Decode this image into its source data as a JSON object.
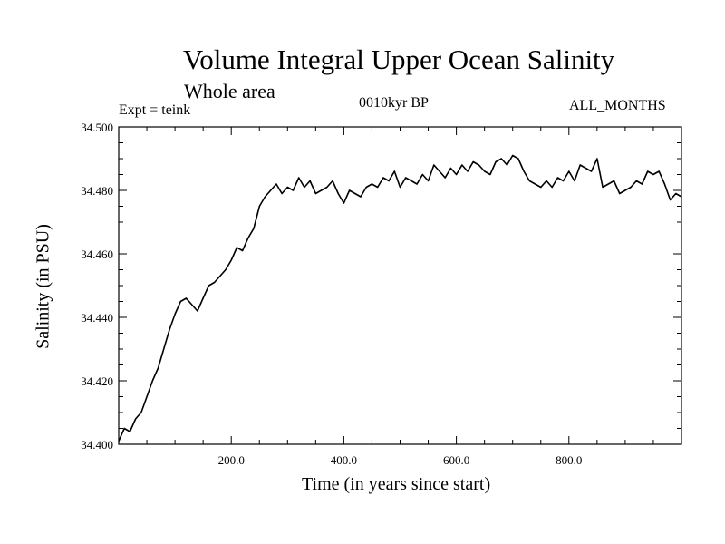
{
  "chart_data": {
    "type": "line",
    "title": "Volume Integral Upper Ocean Salinity",
    "subtitle": "Whole area",
    "annotations": {
      "expt": "Expt = teink",
      "period": "0010kyr BP",
      "months": "ALL_MONTHS"
    },
    "xlabel": "Time (in years since start)",
    "ylabel": "Salinity (in PSU)",
    "xlim": [
      0,
      1000
    ],
    "ylim": [
      34.4,
      34.5
    ],
    "xticks": [
      {
        "value": 200,
        "label": "200.0"
      },
      {
        "value": 400,
        "label": "400.0"
      },
      {
        "value": 600,
        "label": "600.0"
      },
      {
        "value": 800,
        "label": "800.0"
      }
    ],
    "yticks": [
      {
        "value": 34.4,
        "label": "34.400"
      },
      {
        "value": 34.42,
        "label": "34.420"
      },
      {
        "value": 34.44,
        "label": "34.440"
      },
      {
        "value": 34.46,
        "label": "34.460"
      },
      {
        "value": 34.48,
        "label": "34.480"
      },
      {
        "value": 34.5,
        "label": "34.500"
      }
    ],
    "series": [
      {
        "name": "Salinity",
        "x": [
          0,
          10,
          20,
          30,
          40,
          50,
          60,
          70,
          80,
          90,
          100,
          110,
          120,
          130,
          140,
          150,
          160,
          170,
          180,
          190,
          200,
          210,
          220,
          230,
          240,
          250,
          260,
          270,
          280,
          290,
          300,
          310,
          320,
          330,
          340,
          350,
          360,
          370,
          380,
          390,
          400,
          410,
          420,
          430,
          440,
          450,
          460,
          470,
          480,
          490,
          500,
          510,
          520,
          530,
          540,
          550,
          560,
          570,
          580,
          590,
          600,
          610,
          620,
          630,
          640,
          650,
          660,
          670,
          680,
          690,
          700,
          710,
          720,
          730,
          740,
          750,
          760,
          770,
          780,
          790,
          800,
          810,
          820,
          830,
          840,
          850,
          860,
          870,
          880,
          890,
          900,
          910,
          920,
          930,
          940,
          950,
          960,
          970,
          980,
          990,
          1000
        ],
        "values": [
          34.401,
          34.405,
          34.404,
          34.408,
          34.41,
          34.415,
          34.42,
          34.424,
          34.43,
          34.436,
          34.441,
          34.445,
          34.446,
          34.444,
          34.442,
          34.446,
          34.45,
          34.451,
          34.453,
          34.455,
          34.458,
          34.462,
          34.461,
          34.465,
          34.468,
          34.475,
          34.478,
          34.48,
          34.482,
          34.479,
          34.481,
          34.48,
          34.484,
          34.481,
          34.483,
          34.479,
          34.48,
          34.481,
          34.483,
          34.479,
          34.476,
          34.48,
          34.479,
          34.478,
          34.481,
          34.482,
          34.481,
          34.484,
          34.483,
          34.486,
          34.481,
          34.484,
          34.483,
          34.482,
          34.485,
          34.483,
          34.488,
          34.486,
          34.484,
          34.487,
          34.485,
          34.488,
          34.486,
          34.489,
          34.488,
          34.486,
          34.485,
          34.489,
          34.49,
          34.488,
          34.491,
          34.49,
          34.486,
          34.483,
          34.482,
          34.481,
          34.483,
          34.481,
          34.484,
          34.483,
          34.486,
          34.483,
          34.488,
          34.487,
          34.486,
          34.49,
          34.481,
          34.482,
          34.483,
          34.479,
          34.48,
          34.481,
          34.483,
          34.482,
          34.486,
          34.485,
          34.486,
          34.482,
          34.477,
          34.479,
          34.478
        ]
      }
    ]
  }
}
